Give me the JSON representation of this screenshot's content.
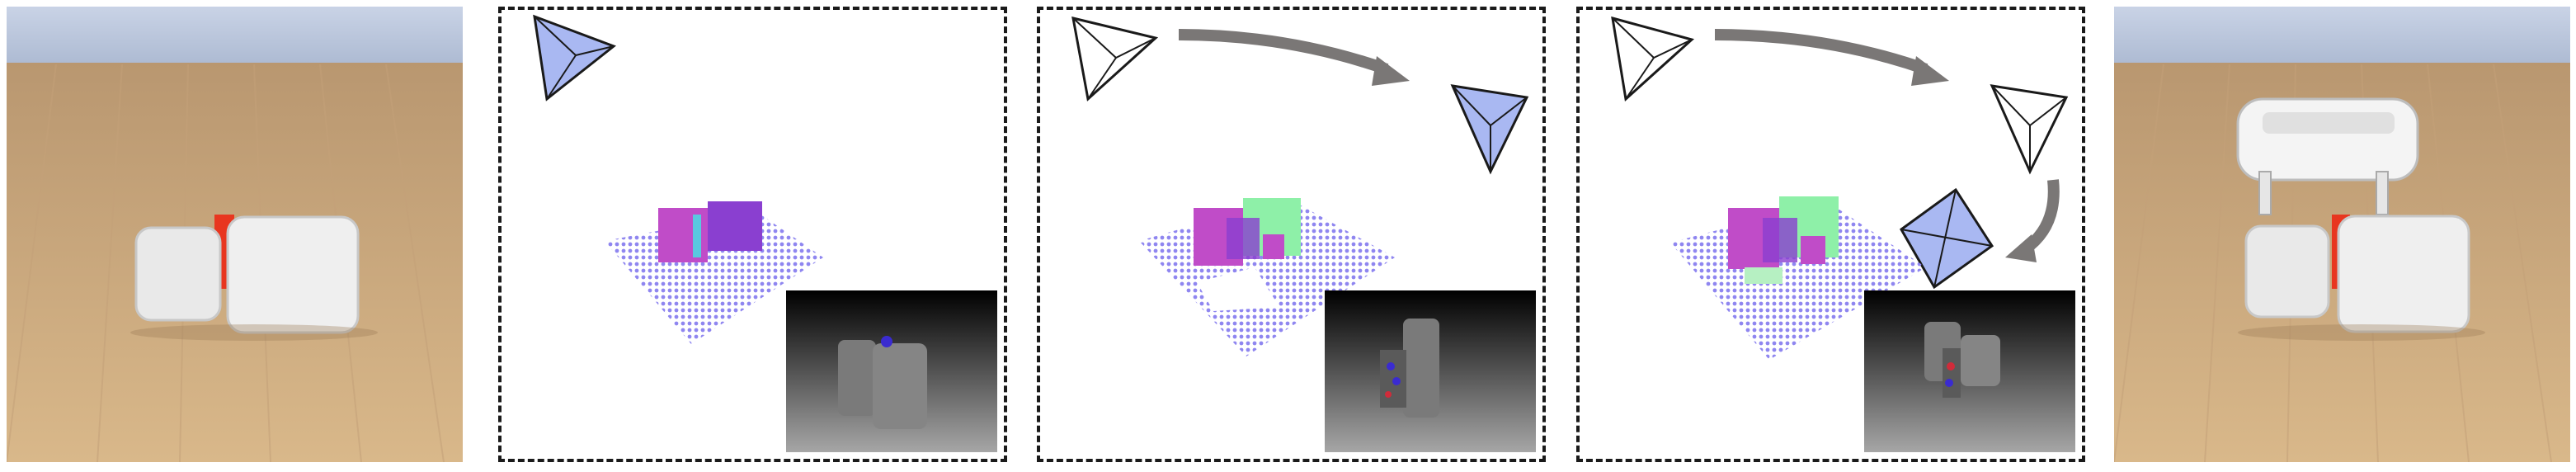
{
  "figure": {
    "panels": [
      {
        "kind": "photo",
        "description_id": "initial-scene",
        "objects": [
          "white-box-left",
          "white-box-right",
          "red-target-object"
        ]
      },
      {
        "kind": "reconstruction",
        "step": 1,
        "active_camera": "camera-1"
      },
      {
        "kind": "reconstruction",
        "step": 2,
        "active_camera": "camera-2"
      },
      {
        "kind": "reconstruction",
        "step": 3,
        "active_camera": "camera-3"
      },
      {
        "kind": "photo",
        "description_id": "final-scene",
        "objects": [
          "white-box-left",
          "white-box-right",
          "red-target-object",
          "robot-gripper"
        ]
      }
    ],
    "colors": {
      "active_camera_fill": "#a9b8f2",
      "inactive_camera_fill": "#ffffff",
      "camera_stroke": "#1a1a1a",
      "arrow": "#7a7776",
      "grid_points": "#8f86f0",
      "voxel_magenta": "#c04cc8",
      "voxel_green": "#8ef0a8",
      "depth_bg_top": "#000000",
      "depth_bg_bottom": "#a6a6a6",
      "wall": "#b9c6dd",
      "floor": "#cfa878",
      "target_red": "#e8361f"
    },
    "icons": [
      "camera-frustum-icon",
      "trajectory-arrow-icon",
      "depth-image-inset"
    ]
  }
}
